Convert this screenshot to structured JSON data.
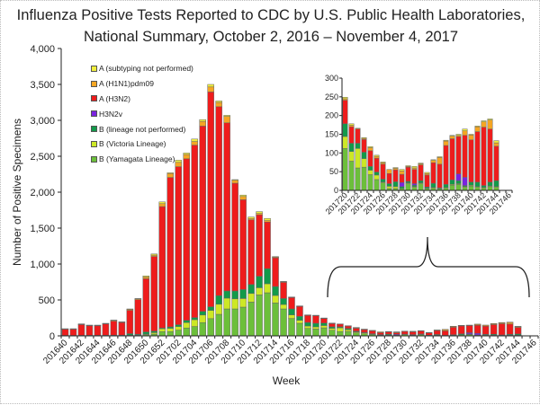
{
  "chart_data": {
    "type": "bar",
    "stacked": true,
    "title": "Influenza Positive Tests Reported to CDC by U.S. Public Health Laboratories,",
    "subtitle": "National Summary, October 2, 2016 – November 4, 2017",
    "xlabel": "Week",
    "ylabel": "Number of Positive Specimens",
    "ylim": [
      0,
      4000
    ],
    "y_ticks": [
      "0",
      "500",
      "1,000",
      "1,500",
      "2,000",
      "2,500",
      "3,000",
      "3,500",
      "4,000"
    ],
    "xlim": [
      "201640",
      "201746"
    ],
    "grid": false,
    "legend_position": "top-left",
    "categories": [
      "201640",
      "201641",
      "201642",
      "201643",
      "201644",
      "201645",
      "201646",
      "201647",
      "201648",
      "201649",
      "201650",
      "201651",
      "201652",
      "201701",
      "201702",
      "201703",
      "201704",
      "201705",
      "201706",
      "201707",
      "201708",
      "201709",
      "201710",
      "201711",
      "201712",
      "201713",
      "201714",
      "201715",
      "201716",
      "201717",
      "201718",
      "201719",
      "201720",
      "201721",
      "201722",
      "201723",
      "201724",
      "201725",
      "201726",
      "201727",
      "201728",
      "201729",
      "201730",
      "201731",
      "201732",
      "201733",
      "201734",
      "201735",
      "201736",
      "201737",
      "201738",
      "201739",
      "201740",
      "201741",
      "201742",
      "201743",
      "201744"
    ],
    "x_tick_labels": [
      "201640",
      "201642",
      "201644",
      "201646",
      "201648",
      "201650",
      "201652",
      "201702",
      "201704",
      "201706",
      "201708",
      "201710",
      "201712",
      "201714",
      "201716",
      "201718",
      "201720",
      "201722",
      "201724",
      "201726",
      "201728",
      "201730",
      "201732",
      "201734",
      "201736",
      "201738",
      "201740",
      "201742",
      "201744",
      "201746"
    ],
    "series": [
      {
        "name": "A (subtyping not performed)",
        "color": "#f0ee3c",
        "values": [
          4,
          4,
          4,
          4,
          4,
          4,
          5,
          5,
          5,
          5,
          15,
          15,
          25,
          10,
          30,
          20,
          35,
          25,
          35,
          20,
          15,
          10,
          20,
          20,
          25,
          30,
          7,
          5,
          3,
          3,
          3,
          3,
          4,
          4,
          0,
          2,
          3,
          3,
          2,
          0,
          2,
          4,
          2,
          4,
          2,
          3,
          2,
          2,
          2,
          2,
          3,
          5,
          2,
          2,
          3,
          3,
          6
        ]
      },
      {
        "name": "A (H1N1)pdm09",
        "color": "#f5a623",
        "values": [
          4,
          4,
          6,
          6,
          6,
          6,
          10,
          6,
          14,
          12,
          25,
          20,
          40,
          55,
          60,
          60,
          50,
          65,
          70,
          60,
          90,
          40,
          45,
          20,
          20,
          20,
          10,
          8,
          5,
          5,
          5,
          4,
          4,
          4,
          2,
          3,
          8,
          5,
          4,
          11,
          4,
          9,
          2,
          4,
          3,
          4,
          6,
          18,
          12,
          7,
          3,
          12,
          13,
          13,
          14,
          24,
          9
        ]
      },
      {
        "name": "A (H3N2)",
        "color": "#ee1c1c",
        "values": [
          86,
          86,
          150,
          133,
          133,
          157,
          195,
          175,
          325,
          480,
          740,
          1040,
          1690,
          2080,
          2200,
          2250,
          2400,
          2580,
          2990,
          2630,
          2340,
          1500,
          1250,
          900,
          855,
          650,
          400,
          225,
          158,
          138,
          97,
          105,
          63,
          44,
          38,
          34,
          42,
          37,
          40,
          27,
          32,
          22,
          38,
          38,
          42,
          32,
          55,
          63,
          104,
          110,
          100,
          112,
          113,
          135,
          156,
          142,
          92
        ]
      },
      {
        "name": "H3N2v",
        "color": "#7a22e0",
        "values": [
          0,
          0,
          0,
          0,
          0,
          0,
          0,
          0,
          0,
          0,
          0,
          0,
          0,
          0,
          0,
          0,
          0,
          0,
          0,
          0,
          0,
          0,
          0,
          0,
          0,
          0,
          0,
          0,
          0,
          0,
          0,
          0,
          0,
          0,
          0,
          0,
          0,
          0,
          0,
          0,
          0,
          11,
          0,
          4,
          0,
          0,
          0,
          0,
          0,
          0,
          18,
          22,
          0,
          0,
          0,
          0,
          0
        ]
      },
      {
        "name": "B (lineage not performed)",
        "color": "#129a4a",
        "values": [
          2,
          2,
          3,
          3,
          3,
          3,
          4,
          4,
          20,
          10,
          30,
          20,
          10,
          20,
          25,
          30,
          30,
          50,
          50,
          120,
          100,
          110,
          125,
          125,
          160,
          210,
          125,
          83,
          83,
          54,
          50,
          50,
          34,
          22,
          14,
          17,
          10,
          8,
          8,
          7,
          13,
          5,
          4,
          4,
          6,
          3,
          11,
          2,
          8,
          12,
          8,
          3,
          8,
          12,
          5,
          10,
          16
        ]
      },
      {
        "name": "B (Victoria Lineage)",
        "color": "#cde826",
        "values": [
          1,
          1,
          1,
          1,
          1,
          1,
          1,
          1,
          3,
          3,
          10,
          20,
          40,
          45,
          50,
          75,
          95,
          105,
          115,
          140,
          150,
          140,
          120,
          120,
          100,
          125,
          104,
          62,
          50,
          42,
          33,
          30,
          32,
          26,
          52,
          23,
          12,
          12,
          2,
          6,
          5,
          0,
          2,
          2,
          2,
          1,
          2,
          1,
          2,
          2,
          2,
          2,
          2,
          2,
          2,
          2,
          2
        ]
      },
      {
        "name": "B (Yamagata Lineage)",
        "color": "#6cbf3a",
        "values": [
          3,
          3,
          3,
          3,
          3,
          4,
          5,
          5,
          8,
          10,
          15,
          25,
          60,
          60,
          80,
          110,
          130,
          185,
          240,
          300,
          375,
          375,
          400,
          470,
          570,
          600,
          458,
          375,
          242,
          175,
          104,
          95,
          112,
          78,
          60,
          62,
          42,
          29,
          20,
          5,
          5,
          5,
          18,
          8,
          18,
          5,
          6,
          4,
          6,
          14,
          16,
          8,
          12,
          8,
          6,
          10,
          8
        ]
      }
    ],
    "inset": {
      "xlim": [
        "201720",
        "201746"
      ],
      "ylim": [
        0,
        300
      ],
      "y_ticks": [
        "0",
        "50",
        "100",
        "150",
        "200",
        "250",
        "300"
      ],
      "x_tick_labels": [
        "201720",
        "201722",
        "201724",
        "201726",
        "201728",
        "201730",
        "201732",
        "201734",
        "201736",
        "201738",
        "201740",
        "201742",
        "201744",
        "201746"
      ]
    }
  }
}
